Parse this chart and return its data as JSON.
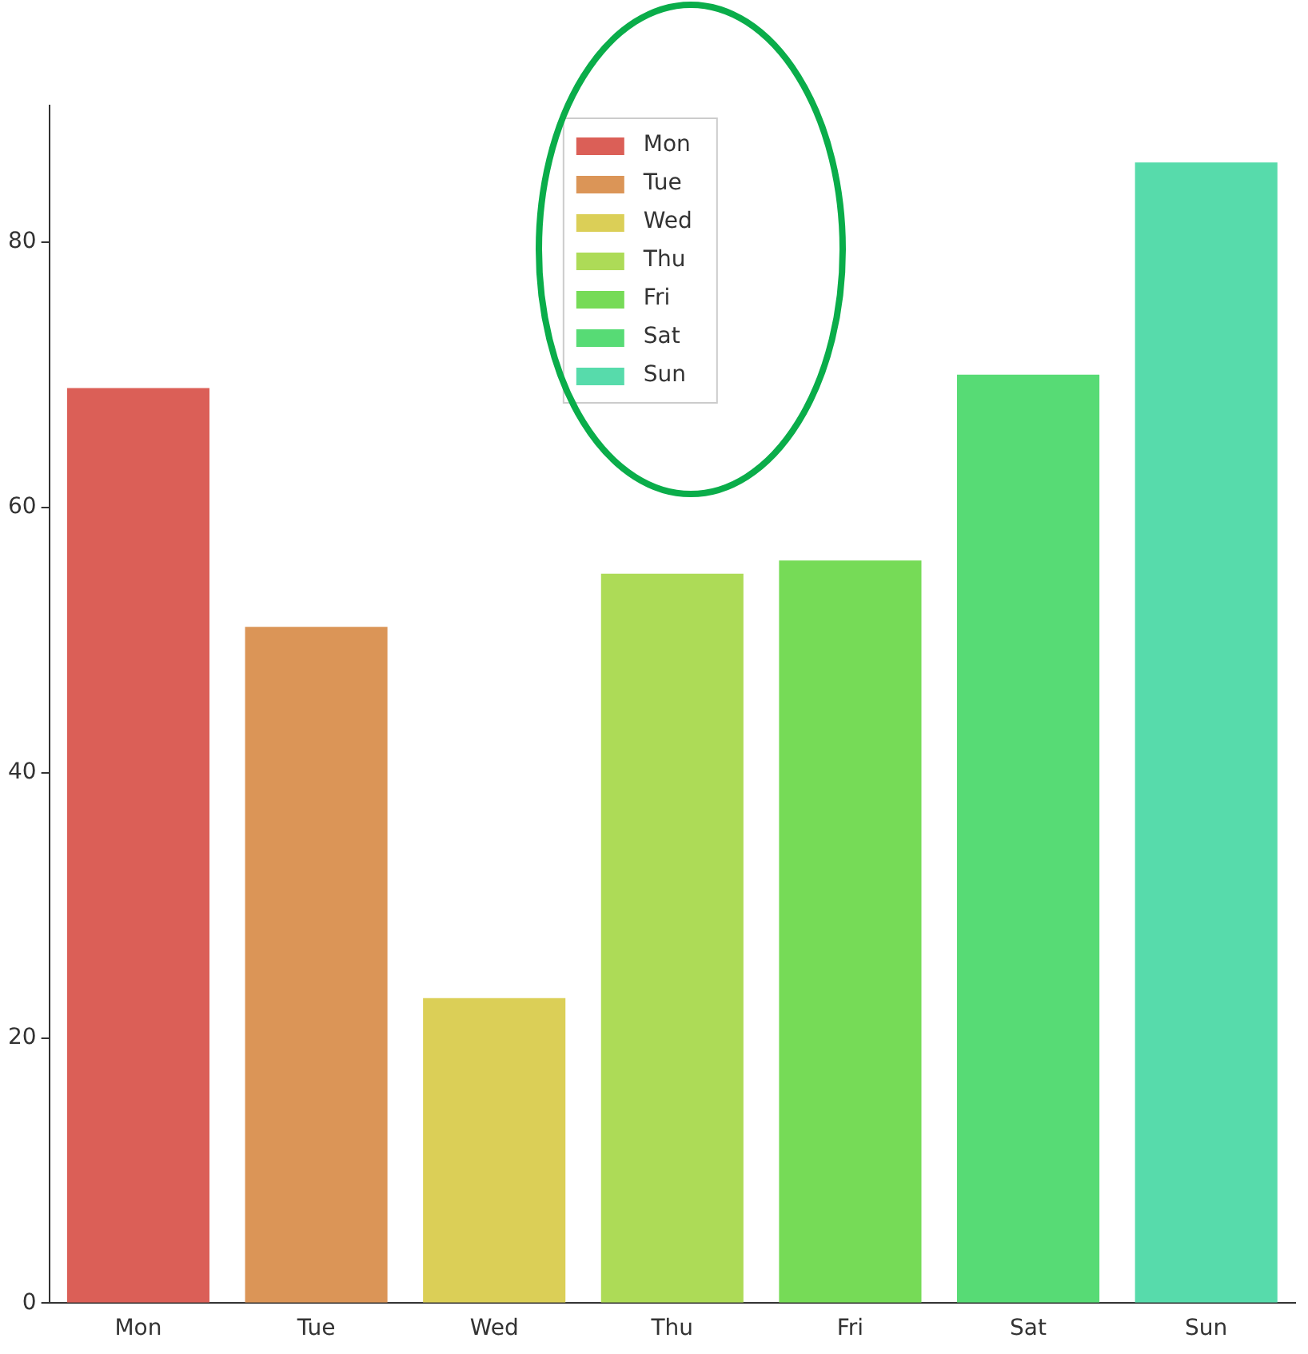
{
  "chart_data": {
    "type": "bar",
    "categories": [
      "Mon",
      "Tue",
      "Wed",
      "Thu",
      "Fri",
      "Sat",
      "Sun"
    ],
    "series": [
      {
        "name": "Mon",
        "color": "#db5f57",
        "values": [
          69,
          null,
          null,
          null,
          null,
          null,
          null
        ]
      },
      {
        "name": "Tue",
        "color": "#db9557",
        "values": [
          null,
          51,
          null,
          null,
          null,
          null,
          null
        ]
      },
      {
        "name": "Wed",
        "color": "#dbcf57",
        "values": [
          null,
          null,
          23,
          null,
          null,
          null,
          null
        ]
      },
      {
        "name": "Thu",
        "color": "#addb57",
        "values": [
          null,
          null,
          null,
          55,
          null,
          null,
          null
        ]
      },
      {
        "name": "Fri",
        "color": "#76db57",
        "values": [
          null,
          null,
          null,
          null,
          56,
          null,
          null
        ]
      },
      {
        "name": "Sat",
        "color": "#57db75",
        "values": [
          null,
          null,
          null,
          null,
          null,
          70,
          null
        ]
      },
      {
        "name": "Sun",
        "color": "#57dbab",
        "values": [
          null,
          null,
          null,
          null,
          null,
          null,
          86
        ]
      }
    ],
    "ylim": [
      0,
      90.3
    ],
    "yticks": [
      0,
      20,
      40,
      60,
      80
    ],
    "grid": false,
    "legend": "top"
  }
}
